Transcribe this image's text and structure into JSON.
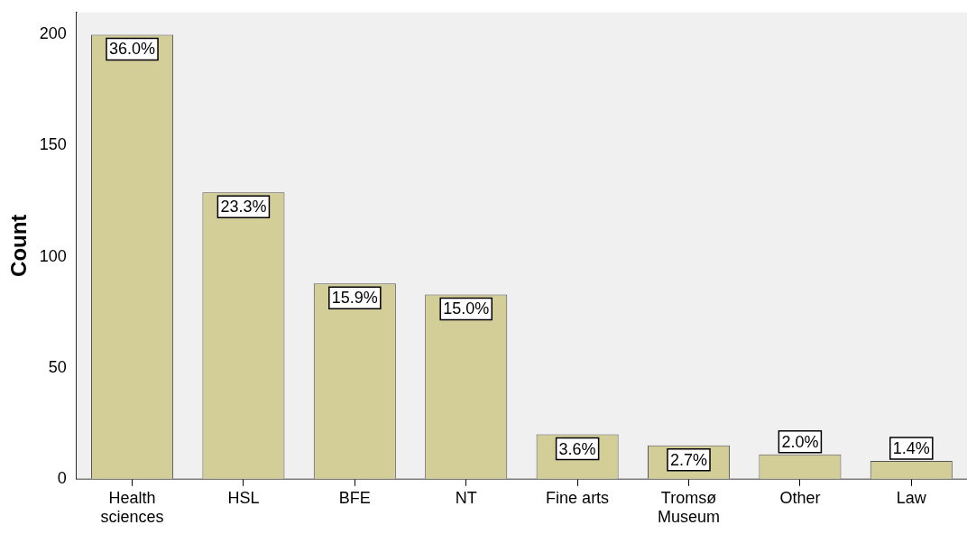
{
  "chart_data": {
    "type": "bar",
    "ylabel": "Count",
    "categories": [
      "Health sciences",
      "HSL",
      "BFE",
      "NT",
      "Fine arts",
      "Tromsø Museum",
      "Other",
      "Law"
    ],
    "values": [
      200,
      129,
      88,
      83,
      20,
      15,
      11,
      8
    ],
    "annotations": [
      {
        "text": "36.0%",
        "x": "Health sciences",
        "y": 200
      },
      {
        "text": "23.3%",
        "x": "HSL",
        "y": 129
      },
      {
        "text": "15.9%",
        "x": "BFE",
        "y": 88
      },
      {
        "text": "15.0%",
        "x": "NT",
        "y": 83
      },
      {
        "text": "3.6%",
        "x": "Fine arts",
        "y": 20
      },
      {
        "text": "2.7%",
        "x": "Tromsø Museum",
        "y": 15
      },
      {
        "text": "2.0%",
        "x": "Other",
        "y": 11
      },
      {
        "text": "1.4%",
        "x": "Law",
        "y": 8
      }
    ],
    "color": "#d3ce98",
    "ylim": [
      0,
      210
    ],
    "yticks": [
      0,
      50,
      100,
      150,
      200
    ],
    "grid": false,
    "legend": false
  }
}
